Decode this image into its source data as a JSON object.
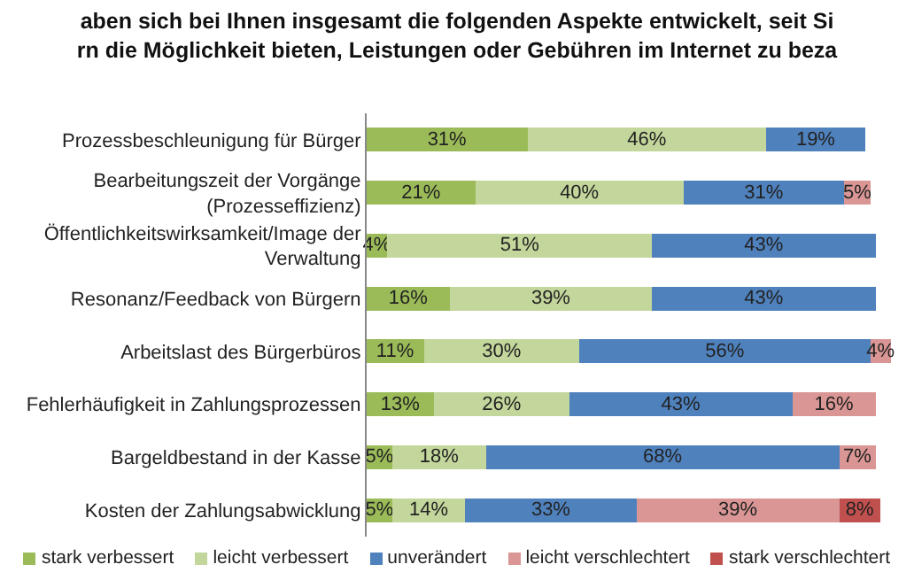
{
  "chart_data": {
    "type": "bar",
    "orientation": "horizontal",
    "stacked": true,
    "title": "aben sich bei Ihnen insgesamt die folgenden Aspekte entwickelt, seit Si\nrn die Möglichkeit bieten, Leistungen oder Gebühren im Internet zu beza",
    "categories": [
      "Prozessbeschleunigung für Bürger",
      "Bearbeitungszeit der Vorgänge (Prozesseffizienz)",
      "Öffentlichkeitswirksamkeit/Image der Verwaltung",
      "Resonanz/Feedback von Bürgern",
      "Arbeitslast des Bürgerbüros",
      "Fehlerhäufigkeit in Zahlungsprozessen",
      "Bargeldbestand in der Kasse",
      "Kosten der Zahlungsabwicklung"
    ],
    "series": [
      {
        "name": "stark verbessert",
        "color": "#9bbb59",
        "values": [
          31,
          21,
          4,
          16,
          11,
          13,
          5,
          5
        ],
        "value_labels": [
          "31%",
          "21%",
          "4%",
          "16%",
          "11%",
          "13%",
          "5%",
          "5%"
        ]
      },
      {
        "name": "leicht verbessert",
        "color": "#c3d69b",
        "values": [
          46,
          40,
          51,
          39,
          30,
          26,
          18,
          14
        ],
        "value_labels": [
          "46%",
          "40%",
          "51%",
          "39%",
          "30%",
          "26%",
          "18%",
          "14%"
        ]
      },
      {
        "name": "unverändert",
        "color": "#4f81bd",
        "values": [
          19,
          31,
          43,
          43,
          56,
          43,
          68,
          33
        ],
        "value_labels": [
          "19%",
          "31%",
          "43%",
          "43%",
          "56%",
          "43%",
          "68%",
          "33%"
        ]
      },
      {
        "name": "leicht verschlechtert",
        "color": "#d99694",
        "values": [
          null,
          5,
          null,
          null,
          4,
          16,
          7,
          39
        ],
        "value_labels": [
          null,
          "5%",
          null,
          null,
          "4%",
          "16%",
          "7%",
          "39%"
        ]
      },
      {
        "name": "stark verschlechtert",
        "color": "#c0504d",
        "values": [
          null,
          null,
          null,
          null,
          null,
          null,
          null,
          8
        ],
        "value_labels": [
          null,
          null,
          null,
          null,
          null,
          null,
          null,
          "8%"
        ]
      }
    ],
    "xlim": [
      0,
      102
    ],
    "tick_labels": "y",
    "grid": false,
    "legend": "bottom"
  }
}
